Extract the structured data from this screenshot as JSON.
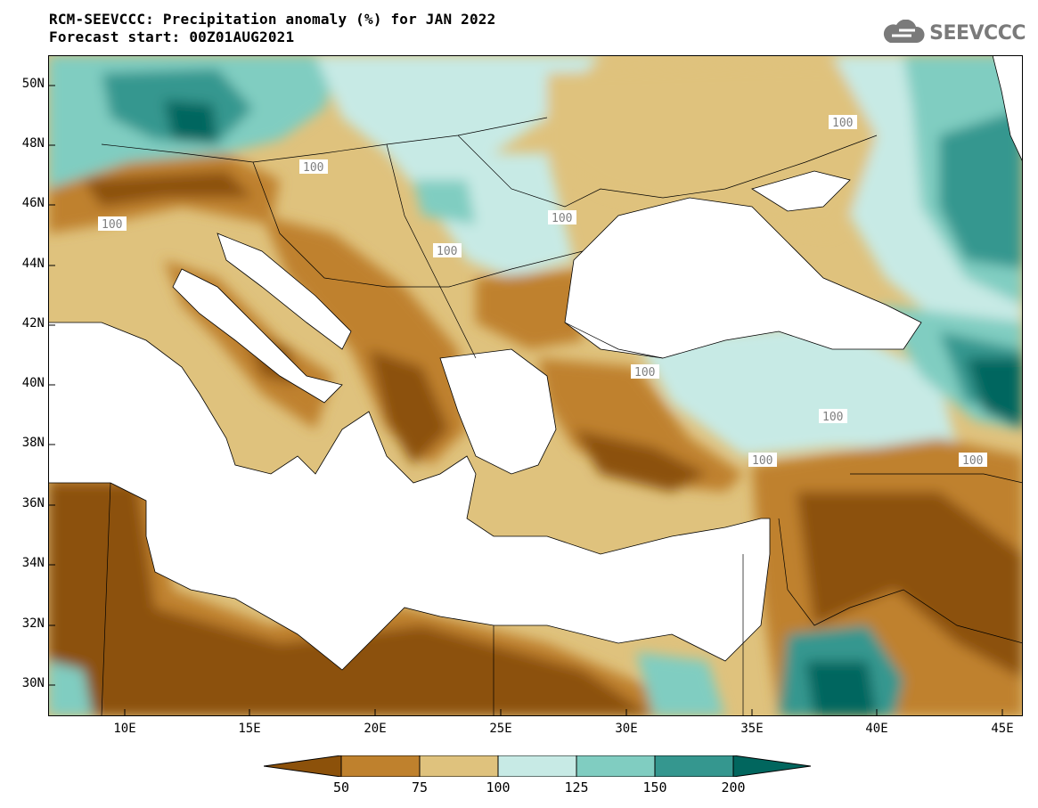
{
  "title_line1": "RCM-SEEVCCC: Precipitation anomaly (%) for JAN 2022",
  "title_line2": "Forecast start: 00Z01AUG2021",
  "logo_text": "SEEVCCC",
  "y_axis_labels": [
    "50N",
    "48N",
    "46N",
    "44N",
    "42N",
    "40N",
    "38N",
    "36N",
    "34N",
    "32N",
    "30N"
  ],
  "x_axis_labels": [
    "10E",
    "15E",
    "20E",
    "25E",
    "30E",
    "35E",
    "40E",
    "45E"
  ],
  "contour_label": "100",
  "colorbar": {
    "labels": [
      "50",
      "75",
      "100",
      "125",
      "150",
      "200"
    ],
    "colors": [
      "#8c510a",
      "#bf812d",
      "#dfc27d",
      "#c7eae5",
      "#80cdc1",
      "#35978f",
      "#01665e"
    ]
  },
  "colors": {
    "sea": "#ffffff",
    "contour_line": "#a6a6a6",
    "dry_strong": "#8c510a",
    "dry": "#bf812d",
    "dry_light": "#dfc27d",
    "wet_light": "#c7eae5",
    "wet": "#80cdc1",
    "wet_strong": "#35978f",
    "wet_extreme": "#01665e"
  }
}
